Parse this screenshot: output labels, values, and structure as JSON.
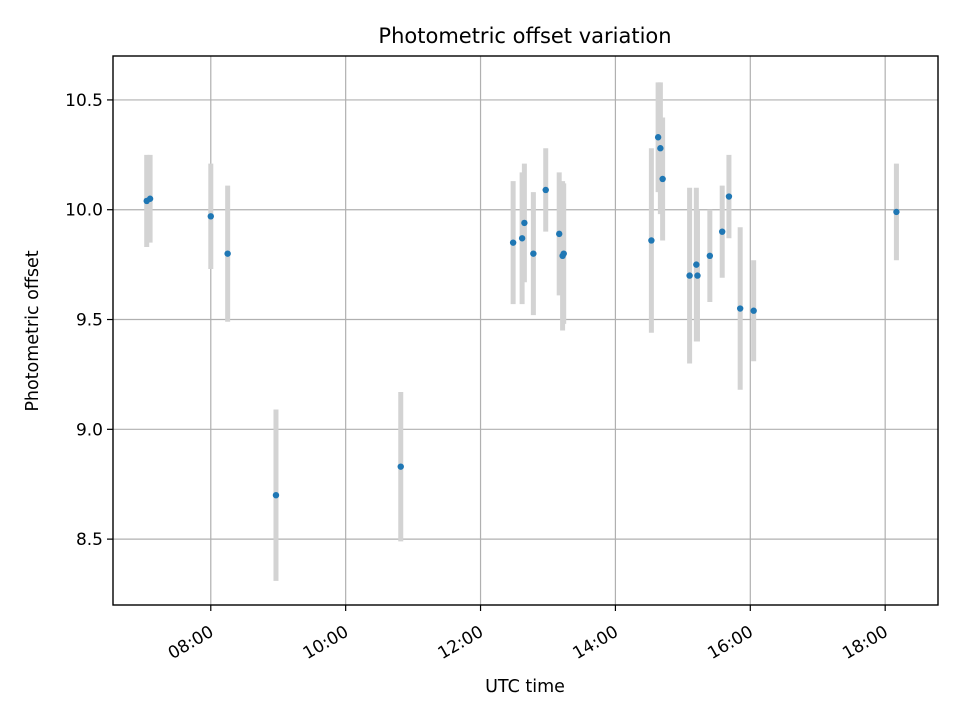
{
  "chart_data": {
    "type": "scatter",
    "title": "Photometric offset variation",
    "xlabel": "UTC time",
    "ylabel": "Photometric offset",
    "xlim": [
      "06:33",
      "18:47"
    ],
    "ylim": [
      8.2,
      10.7
    ],
    "x_ticks": [
      "08:00",
      "10:00",
      "12:00",
      "14:00",
      "16:00",
      "18:00"
    ],
    "y_ticks": [
      8.5,
      9.0,
      9.5,
      10.0,
      10.5
    ],
    "grid": true,
    "colors": {
      "point": "#1f77b4",
      "errorbar": "#d3d3d3"
    },
    "points": [
      {
        "x": "07:03",
        "y": 10.04,
        "err": 0.21
      },
      {
        "x": "07:06",
        "y": 10.05,
        "err": 0.2
      },
      {
        "x": "08:00",
        "y": 9.97,
        "err": 0.24
      },
      {
        "x": "08:15",
        "y": 9.8,
        "err": 0.31
      },
      {
        "x": "08:58",
        "y": 8.7,
        "err": 0.39
      },
      {
        "x": "10:49",
        "y": 8.83,
        "err": 0.34
      },
      {
        "x": "12:29",
        "y": 9.85,
        "err": 0.28
      },
      {
        "x": "12:37",
        "y": 9.87,
        "err": 0.3
      },
      {
        "x": "12:39",
        "y": 9.94,
        "err": 0.27
      },
      {
        "x": "12:47",
        "y": 9.8,
        "err": 0.28
      },
      {
        "x": "12:58",
        "y": 10.09,
        "err": 0.19
      },
      {
        "x": "13:10",
        "y": 9.89,
        "err": 0.28
      },
      {
        "x": "13:13",
        "y": 9.79,
        "err": 0.34
      },
      {
        "x": "13:14",
        "y": 9.8,
        "err": 0.32
      },
      {
        "x": "14:32",
        "y": 9.86,
        "err": 0.42
      },
      {
        "x": "14:38",
        "y": 10.33,
        "err": 0.25
      },
      {
        "x": "14:40",
        "y": 10.28,
        "err": 0.3
      },
      {
        "x": "14:42",
        "y": 10.14,
        "err": 0.28
      },
      {
        "x": "15:06",
        "y": 9.7,
        "err": 0.4
      },
      {
        "x": "15:12",
        "y": 9.75,
        "err": 0.35
      },
      {
        "x": "15:13",
        "y": 9.7,
        "err": 0.3
      },
      {
        "x": "15:24",
        "y": 9.79,
        "err": 0.21
      },
      {
        "x": "15:35",
        "y": 9.9,
        "err": 0.21
      },
      {
        "x": "15:41",
        "y": 10.06,
        "err": 0.19
      },
      {
        "x": "15:51",
        "y": 9.55,
        "err": 0.37
      },
      {
        "x": "16:03",
        "y": 9.54,
        "err": 0.23
      },
      {
        "x": "18:10",
        "y": 9.99,
        "err": 0.22
      }
    ]
  }
}
